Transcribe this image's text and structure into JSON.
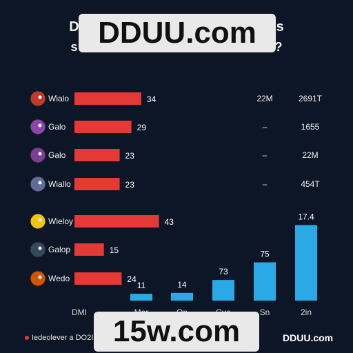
{
  "title_line_1": "D",
  "title_line_1_tail": "s",
  "title_line_2": "s",
  "title_line_2_tail": "?",
  "watermark_top": "DDUU.com",
  "watermark_bottom": "15w.com",
  "footer_note": "Iedeolever a DO2I",
  "footer_brand": "DDUU.com",
  "axis_corner_label": "DMI",
  "colors": {
    "background": "#0d1626",
    "bar_red": "#e53935",
    "bar_blue": "#29a9e6",
    "text": "#ffffff"
  },
  "chart_data": [
    {
      "type": "bar",
      "orientation": "horizontal",
      "categories": [
        "Wialo",
        "Galo",
        "Galo",
        "Wiallo",
        "Wieloy",
        "Galop",
        "Wedo"
      ],
      "icons": [
        "fighter-icon",
        "witch-icon",
        "purple-creature-icon",
        "blue-blob-icon",
        "blonde-hero-icon",
        "dark-ninja-icon",
        "orange-fox-icon"
      ],
      "values": [
        34,
        29,
        23,
        23,
        43,
        15,
        24
      ],
      "value_labels": [
        "34",
        "29",
        "23",
        "23",
        "43",
        "15",
        "24"
      ],
      "xlim": [
        0,
        50
      ]
    },
    {
      "type": "table",
      "columns": [
        "col_1",
        "col_2"
      ],
      "rows": [
        [
          "22M",
          "2691T"
        ],
        [
          "–",
          "1655"
        ],
        [
          "–",
          "22M"
        ],
        [
          "–",
          "454T"
        ]
      ]
    },
    {
      "type": "bar",
      "orientation": "vertical",
      "categories": [
        "Mar",
        "On",
        "Cue",
        "Sn",
        "2in"
      ],
      "values": [
        11,
        14,
        73,
        75,
        17.4
      ],
      "value_labels": [
        "11",
        "14",
        "73",
        "75",
        "17.4"
      ]
    }
  ]
}
